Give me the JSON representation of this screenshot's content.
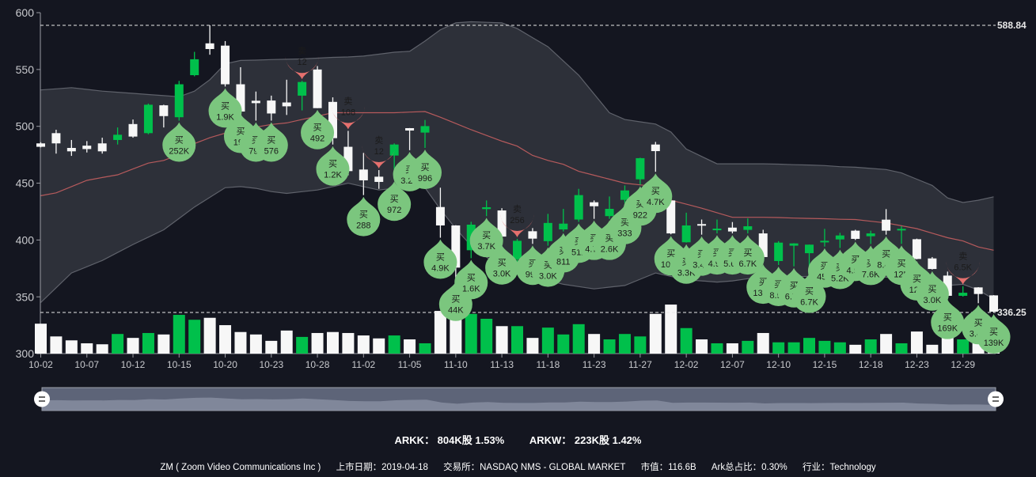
{
  "chart_data": {
    "type": "candlestick",
    "ylim": [
      300,
      600
    ],
    "y_ticks": [
      "600",
      "550",
      "500",
      "450",
      "400",
      "350",
      "300"
    ],
    "x_tick_labels": [
      "10-02",
      "10-07",
      "10-12",
      "10-15",
      "10-20",
      "10-23",
      "10-28",
      "11-02",
      "11-05",
      "11-10",
      "11-13",
      "11-18",
      "11-23",
      "11-27",
      "12-02",
      "12-07",
      "12-10",
      "12-15",
      "12-18",
      "12-23",
      "12-29"
    ],
    "x_tick_every": 3,
    "max_line": {
      "value": 588.84,
      "label": "588.84"
    },
    "min_line": {
      "value": 336.25,
      "label": "336.25"
    },
    "volume_unit": "relative (max = 100)",
    "candles_fields": [
      "open",
      "close",
      "low",
      "high",
      "volume"
    ],
    "candles": [
      [
        485,
        482,
        481.5,
        486,
        61
      ],
      [
        494,
        485,
        476,
        497,
        35
      ],
      [
        481,
        478,
        474,
        488,
        27
      ],
      [
        483,
        480,
        477,
        487,
        21
      ],
      [
        485,
        478,
        476,
        490,
        19
      ],
      [
        488,
        492.6,
        484,
        499,
        40
      ],
      [
        502,
        491,
        490,
        506,
        32
      ],
      [
        494,
        519,
        493,
        520,
        42
      ],
      [
        518.5,
        509,
        499,
        519,
        39
      ],
      [
        508,
        537,
        505,
        540,
        79
      ],
      [
        545,
        559,
        544,
        565.5,
        69
      ],
      [
        573,
        568,
        563,
        588.84,
        73
      ],
      [
        571,
        537,
        535,
        575,
        58
      ],
      [
        537,
        513,
        512.7,
        552,
        44
      ],
      [
        522.5,
        520.4,
        505,
        530.6,
        39
      ],
      [
        522.7,
        511.3,
        505,
        527,
        26
      ],
      [
        521,
        517.6,
        510,
        541,
        47
      ],
      [
        527,
        539,
        514,
        540,
        34
      ],
      [
        550,
        516,
        516,
        553,
        42
      ],
      [
        521.5,
        489.6,
        484,
        525.5,
        44
      ],
      [
        482,
        460.6,
        457,
        496,
        42
      ],
      [
        462,
        452.5,
        439.5,
        476.6,
        37
      ],
      [
        455.7,
        451.1,
        445,
        461.5,
        31
      ],
      [
        474.3,
        484,
        453,
        485,
        37
      ],
      [
        498.4,
        496.3,
        479,
        498.5,
        29
      ],
      [
        494.5,
        500.2,
        481,
        505.6,
        21
      ],
      [
        429,
        412.8,
        402,
        446,
        87
      ],
      [
        412.8,
        375.7,
        365,
        413,
        89
      ],
      [
        391,
        413.5,
        384,
        416,
        81
      ],
      [
        427.2,
        428.8,
        421,
        434.8,
        71
      ],
      [
        426,
        403,
        397,
        428,
        56
      ],
      [
        383,
        399.3,
        376,
        401,
        56
      ],
      [
        407.7,
        401.2,
        396.6,
        410.5,
        32
      ],
      [
        399,
        415,
        395,
        423,
        53
      ],
      [
        409.3,
        414.4,
        407.5,
        427.4,
        39
      ],
      [
        418,
        439.5,
        416,
        445,
        60
      ],
      [
        433.2,
        429.7,
        418.6,
        434.8,
        40
      ],
      [
        421,
        427.4,
        418.6,
        438.3,
        29
      ],
      [
        435.3,
        443.6,
        432.5,
        448,
        40
      ],
      [
        453.4,
        472,
        448.7,
        472.4,
        35
      ],
      [
        484,
        478.2,
        460,
        486.3,
        81
      ],
      [
        434.8,
        405.8,
        405,
        436,
        100
      ],
      [
        398,
        412.8,
        397.7,
        424,
        52
      ],
      [
        414,
        413.3,
        404.7,
        418,
        29
      ],
      [
        408.6,
        410,
        405.8,
        418,
        21
      ],
      [
        410.9,
        407.5,
        405.8,
        415.8,
        21
      ],
      [
        408.9,
        412.1,
        405.8,
        419,
        26
      ],
      [
        405.8,
        385,
        380,
        409,
        42
      ],
      [
        381.5,
        397.7,
        378,
        399,
        23
      ],
      [
        395,
        397,
        376.8,
        397.2,
        23
      ],
      [
        388.4,
        395.9,
        372,
        396,
        32
      ],
      [
        398.2,
        399.3,
        394.2,
        409.8,
        26
      ],
      [
        400.5,
        404,
        393,
        406.3,
        23
      ],
      [
        408.2,
        401,
        400,
        409,
        18
      ],
      [
        403.3,
        405.8,
        396.5,
        408.2,
        29
      ],
      [
        417.9,
        408.2,
        404.7,
        427.2,
        40
      ],
      [
        408.6,
        409.8,
        396.6,
        412.1,
        21
      ],
      [
        400.7,
        383.3,
        383,
        401.2,
        45
      ],
      [
        383.8,
        374.5,
        374,
        385,
        18
      ],
      [
        368.7,
        350.9,
        349,
        372.2,
        47
      ],
      [
        350.9,
        353.6,
        350.2,
        359.4,
        29
      ],
      [
        358.3,
        352.5,
        344.4,
        358.5,
        26
      ],
      [
        351.3,
        336.9,
        336.25,
        351.5,
        15
      ]
    ],
    "bollinger_upper": [
      [
        0,
        532
      ],
      [
        2,
        534
      ],
      [
        4,
        531
      ],
      [
        6,
        529
      ],
      [
        8,
        527
      ],
      [
        9,
        526
      ],
      [
        10,
        531
      ],
      [
        11,
        541
      ],
      [
        12,
        555
      ],
      [
        13,
        558
      ],
      [
        16,
        559
      ],
      [
        20,
        561
      ],
      [
        24,
        566
      ],
      [
        25,
        575
      ],
      [
        26,
        585
      ],
      [
        27,
        591
      ],
      [
        28,
        592
      ],
      [
        30,
        591
      ],
      [
        31,
        586
      ],
      [
        33,
        570
      ],
      [
        35,
        545
      ],
      [
        37,
        512
      ],
      [
        38,
        506
      ],
      [
        40,
        502
      ],
      [
        41,
        495
      ],
      [
        42,
        480
      ],
      [
        44,
        467
      ],
      [
        47,
        467
      ],
      [
        50,
        466
      ],
      [
        53,
        464
      ],
      [
        55,
        462
      ],
      [
        56,
        459
      ],
      [
        58,
        448
      ],
      [
        59,
        437
      ],
      [
        60,
        433
      ],
      [
        61,
        435
      ],
      [
        62,
        438
      ]
    ],
    "bollinger_lower": [
      [
        0,
        345
      ],
      [
        2,
        371
      ],
      [
        4,
        382
      ],
      [
        6,
        396
      ],
      [
        8,
        409
      ],
      [
        10,
        429
      ],
      [
        12,
        446
      ],
      [
        13,
        447
      ],
      [
        16,
        441
      ],
      [
        18,
        444
      ],
      [
        20,
        450
      ],
      [
        22,
        444
      ],
      [
        24,
        447
      ],
      [
        25,
        446
      ],
      [
        26,
        427
      ],
      [
        27,
        410
      ],
      [
        28,
        395
      ],
      [
        30,
        375
      ],
      [
        32,
        368
      ],
      [
        34,
        361
      ],
      [
        36,
        357
      ],
      [
        38,
        360
      ],
      [
        40,
        371
      ],
      [
        42,
        365
      ],
      [
        44,
        363
      ],
      [
        47,
        367
      ],
      [
        50,
        368
      ],
      [
        53,
        368
      ],
      [
        56,
        367
      ],
      [
        58,
        363
      ],
      [
        59,
        360
      ],
      [
        60,
        361
      ],
      [
        61,
        356
      ],
      [
        62,
        348
      ]
    ],
    "moving_average": [
      [
        0,
        439
      ],
      [
        4,
        455
      ],
      [
        8,
        470
      ],
      [
        11,
        490
      ],
      [
        13,
        498
      ],
      [
        16,
        503
      ],
      [
        18,
        509
      ],
      [
        19,
        512
      ],
      [
        21,
        512
      ],
      [
        23,
        512
      ],
      [
        25,
        513
      ],
      [
        26,
        508
      ],
      [
        28,
        497
      ],
      [
        30,
        487
      ],
      [
        33,
        470
      ],
      [
        36,
        457
      ],
      [
        38,
        450
      ],
      [
        40,
        447
      ],
      [
        41,
        435
      ],
      [
        43,
        428
      ],
      [
        45,
        420
      ],
      [
        47,
        420
      ],
      [
        50,
        419
      ],
      [
        53,
        418
      ],
      [
        55,
        415
      ],
      [
        57,
        410
      ],
      [
        59,
        402
      ],
      [
        62,
        391
      ]
    ],
    "trade_markers": [
      {
        "i": 9,
        "type": "buy",
        "label": "买",
        "value": "252K"
      },
      {
        "i": 12,
        "type": "buy",
        "label": "买",
        "value": "1.9K"
      },
      {
        "i": 13,
        "type": "buy",
        "label": "买",
        "value": "192"
      },
      {
        "i": 14,
        "type": "buy",
        "label": "买",
        "value": "792"
      },
      {
        "i": 15,
        "type": "buy",
        "label": "买",
        "value": "576"
      },
      {
        "i": 17,
        "type": "sell",
        "label": "卖",
        "value": "12"
      },
      {
        "i": 18,
        "type": "buy",
        "label": "买",
        "value": "492"
      },
      {
        "i": 19,
        "type": "buy",
        "label": "买",
        "value": "1.2K"
      },
      {
        "i": 20,
        "type": "sell",
        "label": "卖",
        "value": "108"
      },
      {
        "i": 21,
        "type": "buy",
        "label": "买",
        "value": "288"
      },
      {
        "i": 22,
        "type": "sell",
        "label": "卖",
        "value": "12"
      },
      {
        "i": 23,
        "type": "buy",
        "label": "买",
        "value": "972"
      },
      {
        "i": 24,
        "type": "buy",
        "label": "买",
        "value": "3.2K"
      },
      {
        "i": 25,
        "type": "buy",
        "label": "买",
        "value": "996"
      },
      {
        "i": 26,
        "type": "buy",
        "label": "买",
        "value": "4.9K"
      },
      {
        "i": 27,
        "type": "buy",
        "label": "买",
        "value": "44K"
      },
      {
        "i": 28,
        "type": "buy",
        "label": "买",
        "value": "1.6K"
      },
      {
        "i": 29,
        "type": "buy",
        "label": "买",
        "value": "3.7K"
      },
      {
        "i": 30,
        "type": "buy",
        "label": "买",
        "value": "3.0K"
      },
      {
        "i": 31,
        "type": "sell",
        "label": "卖",
        "value": "256"
      },
      {
        "i": 32,
        "type": "buy",
        "label": "买",
        "value": "995"
      },
      {
        "i": 33,
        "type": "buy",
        "label": "买",
        "value": "3.0K"
      },
      {
        "i": 34,
        "type": "buy",
        "label": "买",
        "value": "811"
      },
      {
        "i": 35,
        "type": "buy",
        "label": "买",
        "value": "512"
      },
      {
        "i": 36,
        "type": "buy",
        "label": "买",
        "value": "4.7K"
      },
      {
        "i": 37,
        "type": "buy",
        "label": "买",
        "value": "2.6K"
      },
      {
        "i": 38,
        "type": "buy",
        "label": "买",
        "value": "333"
      },
      {
        "i": 39,
        "type": "buy",
        "label": "买",
        "value": "922"
      },
      {
        "i": 40,
        "type": "buy",
        "label": "买",
        "value": "4.7K"
      },
      {
        "i": 41,
        "type": "buy",
        "label": "买",
        "value": "107K"
      },
      {
        "i": 42,
        "type": "buy",
        "label": "买",
        "value": "3.3K"
      },
      {
        "i": 43,
        "type": "buy",
        "label": "买",
        "value": "3.4K"
      },
      {
        "i": 44,
        "type": "buy",
        "label": "买",
        "value": "4.9K"
      },
      {
        "i": 45,
        "type": "buy",
        "label": "买",
        "value": "5.6K"
      },
      {
        "i": 46,
        "type": "buy",
        "label": "买",
        "value": "6.7K"
      },
      {
        "i": 47,
        "type": "buy",
        "label": "买",
        "value": "131K"
      },
      {
        "i": 48,
        "type": "buy",
        "label": "买",
        "value": "8.9K"
      },
      {
        "i": 49,
        "type": "buy",
        "label": "买",
        "value": "6.7K"
      },
      {
        "i": 50,
        "type": "buy",
        "label": "买",
        "value": "6.7K"
      },
      {
        "i": 51,
        "type": "buy",
        "label": "买",
        "value": "45K"
      },
      {
        "i": 52,
        "type": "buy",
        "label": "买",
        "value": "5.2K"
      },
      {
        "i": 53,
        "type": "buy",
        "label": "买",
        "value": "4.9K"
      },
      {
        "i": 54,
        "type": "buy",
        "label": "买",
        "value": "7.6K"
      },
      {
        "i": 55,
        "type": "buy",
        "label": "买",
        "value": "8.4K"
      },
      {
        "i": 56,
        "type": "buy",
        "label": "买",
        "value": "12K"
      },
      {
        "i": 57,
        "type": "buy",
        "label": "买",
        "value": "12K"
      },
      {
        "i": 58,
        "type": "buy",
        "label": "买",
        "value": "3.0K"
      },
      {
        "i": 59,
        "type": "buy",
        "label": "买",
        "value": "169K"
      },
      {
        "i": 60,
        "type": "sell",
        "label": "卖",
        "value": "6.5K"
      },
      {
        "i": 61,
        "type": "buy",
        "label": "买",
        "value": "3.4K"
      },
      {
        "i": 62,
        "type": "buy",
        "label": "买",
        "value": "139K"
      }
    ],
    "colors": {
      "up": "#00c04b",
      "down": "#f7f7f7",
      "buy": "#7bc67e",
      "sell": "#e5706e",
      "band": "#2d3039",
      "ma": "#b65a5c"
    }
  },
  "holdings": {
    "arkk": "ARKK： 804K股 1.53%",
    "arkw": "ARKW： 223K股 1.42%"
  },
  "info": {
    "name": "ZM ( Zoom Video Communications Inc )",
    "ipo": "上市日期：2019-04-18",
    "exchange": "交易所：NASDAQ NMS - GLOBAL MARKET",
    "market_cap": "市值：116.6B",
    "ark_ratio": "Ark总占比：0.30%",
    "industry": "行业：Technology"
  }
}
